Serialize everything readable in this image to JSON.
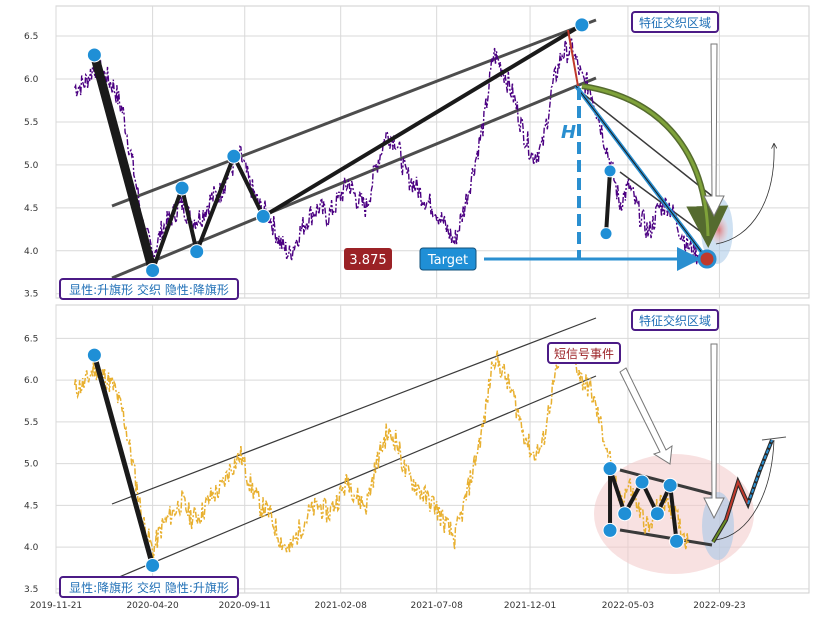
{
  "chart_data": [
    {
      "type": "line",
      "panel": "top",
      "ylim": [
        3.45,
        6.85
      ],
      "y_ticks": [
        "3.5",
        "4.0",
        "4.5",
        "5.0",
        "5.5",
        "6.0",
        "6.5"
      ],
      "line_color": "#4b0082",
      "grid": true,
      "labels": {
        "pattern_note": "显性:升旗形 交织 隐性:降旗形",
        "region_note": "特征交织区域",
        "price_badge": "3.875",
        "target_badge": "Target",
        "h_marker": "H"
      },
      "price_series": [
        [
          "2019-12-20",
          5.9
        ],
        [
          "2020-01-05",
          5.95
        ],
        [
          "2020-01-20",
          6.15
        ],
        [
          "2020-02-05",
          6.05
        ],
        [
          "2020-02-20",
          5.9
        ],
        [
          "2020-03-05",
          5.6
        ],
        [
          "2020-03-20",
          5.0
        ],
        [
          "2020-04-05",
          4.3
        ],
        [
          "2020-04-20",
          3.95
        ],
        [
          "2020-05-05",
          4.25
        ],
        [
          "2020-05-20",
          4.4
        ],
        [
          "2020-06-05",
          4.55
        ],
        [
          "2020-06-20",
          4.35
        ],
        [
          "2020-07-05",
          4.4
        ],
        [
          "2020-07-20",
          4.6
        ],
        [
          "2020-08-05",
          4.7
        ],
        [
          "2020-08-20",
          4.95
        ],
        [
          "2020-09-05",
          5.1
        ],
        [
          "2020-09-20",
          4.75
        ],
        [
          "2020-10-05",
          4.5
        ],
        [
          "2020-10-20",
          4.4
        ],
        [
          "2020-11-05",
          4.1
        ],
        [
          "2020-11-20",
          3.95
        ],
        [
          "2020-12-05",
          4.2
        ],
        [
          "2020-12-20",
          4.4
        ],
        [
          "2021-01-05",
          4.5
        ],
        [
          "2021-01-20",
          4.4
        ],
        [
          "2021-02-05",
          4.6
        ],
        [
          "2021-02-20",
          4.8
        ],
        [
          "2021-03-05",
          4.6
        ],
        [
          "2021-03-20",
          4.5
        ],
        [
          "2021-04-05",
          5.0
        ],
        [
          "2021-04-20",
          5.35
        ],
        [
          "2021-05-05",
          5.3
        ],
        [
          "2021-05-20",
          4.9
        ],
        [
          "2021-06-05",
          4.75
        ],
        [
          "2021-06-20",
          4.6
        ],
        [
          "2021-07-05",
          4.5
        ],
        [
          "2021-07-20",
          4.3
        ],
        [
          "2021-08-05",
          4.1
        ],
        [
          "2021-08-20",
          4.5
        ],
        [
          "2021-09-05",
          5.0
        ],
        [
          "2021-09-20",
          5.5
        ],
        [
          "2021-10-05",
          6.3
        ],
        [
          "2021-10-20",
          6.1
        ],
        [
          "2021-11-05",
          5.8
        ],
        [
          "2021-11-20",
          5.4
        ],
        [
          "2021-12-05",
          5.1
        ],
        [
          "2021-12-20",
          5.2
        ],
        [
          "2022-01-05",
          5.9
        ],
        [
          "2022-01-20",
          6.3
        ],
        [
          "2022-02-05",
          6.35
        ],
        [
          "2022-02-20",
          6.0
        ],
        [
          "2022-03-05",
          5.9
        ],
        [
          "2022-03-20",
          5.5
        ],
        [
          "2022-04-05",
          5.05
        ],
        [
          "2022-04-20",
          4.55
        ],
        [
          "2022-05-05",
          4.75
        ],
        [
          "2022-05-20",
          4.45
        ],
        [
          "2022-06-05",
          4.2
        ],
        [
          "2022-06-20",
          4.5
        ],
        [
          "2022-07-05",
          4.55
        ],
        [
          "2022-07-20",
          4.3
        ],
        [
          "2022-08-05",
          4.05
        ],
        [
          "2022-08-20",
          3.95
        ]
      ],
      "pivot_points": [
        [
          "2020-01-20",
          6.28
        ],
        [
          "2020-04-20",
          3.77
        ],
        [
          "2020-06-05",
          4.73
        ],
        [
          "2020-06-28",
          3.99
        ],
        [
          "2020-08-25",
          5.1
        ],
        [
          "2020-10-10",
          4.4
        ],
        [
          "2022-02-20",
          6.63
        ],
        [
          "2022-04-05",
          4.93
        ],
        [
          "2022-04-05",
          4.2
        ],
        [
          "2022-08-25",
          3.87
        ]
      ]
    },
    {
      "type": "line",
      "panel": "bottom",
      "ylim": [
        3.45,
        6.9
      ],
      "y_ticks": [
        "3.5",
        "4.0",
        "4.5",
        "5.0",
        "5.5",
        "6.0",
        "6.5"
      ],
      "line_color": "#e8b030",
      "grid": true,
      "x_ticks": [
        "2019-11-21",
        "2020-04-20",
        "2020-09-11",
        "2021-02-08",
        "2021-07-08",
        "2021-12-01",
        "2022-05-03",
        "2022-09-23"
      ],
      "labels": {
        "pattern_note": "显性:降旗形 交织 隐性:升旗形",
        "region_note": "特征交织区域",
        "signal_note": "短信号事件"
      },
      "pivot_points": [
        [
          "2020-01-20",
          6.3
        ],
        [
          "2020-04-20",
          3.78
        ],
        [
          "2022-04-05",
          4.94
        ],
        [
          "2022-04-05",
          4.2
        ],
        [
          "2022-04-28",
          4.4
        ],
        [
          "2022-05-25",
          4.78
        ],
        [
          "2022-06-18",
          4.4
        ],
        [
          "2022-07-08",
          4.74
        ],
        [
          "2022-07-18",
          4.07
        ]
      ]
    }
  ],
  "colors": {
    "pivot": "#1f8fd6",
    "badge_red": "#9b2226",
    "badge_blue": "#1f8fd6",
    "label_border": "#4b1b86",
    "label_text": "#1f6fb6",
    "arc_green": "#6b8e23"
  }
}
